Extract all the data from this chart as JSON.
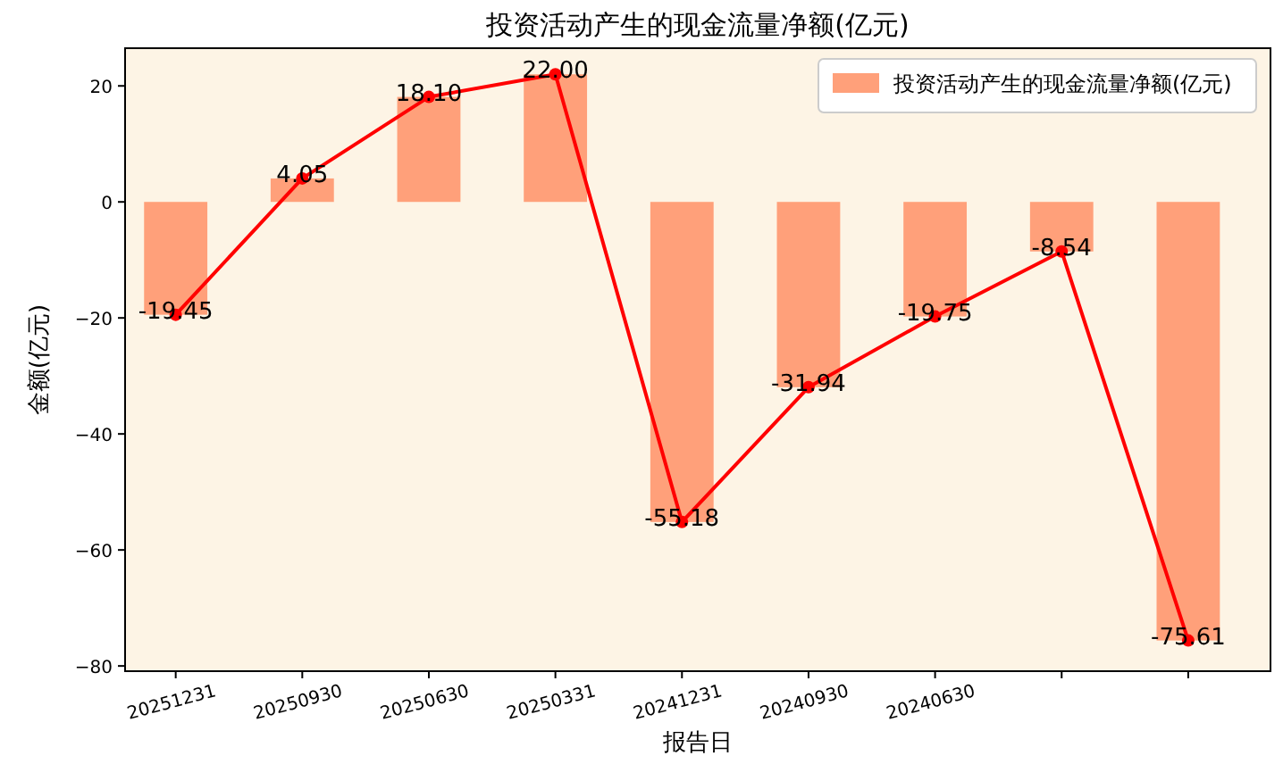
{
  "chart_data": {
    "type": "bar",
    "title": "投资活动产生的现金流量净额(亿元)",
    "xlabel": "报告日",
    "ylabel": "金额(亿元)",
    "categories": [
      "20251231",
      "20250930",
      "20250630",
      "20250331",
      "20241231",
      "20240930",
      "20240630",
      null,
      null
    ],
    "series": [
      {
        "name": "投资活动产生的现金流量净额(亿元)",
        "color": "#ffa07a",
        "values": [
          -19.45,
          4.05,
          18.1,
          22.0,
          -55.18,
          -31.94,
          -19.75,
          -8.54,
          -75.61
        ]
      },
      {
        "type": "line",
        "color": "#ff0000",
        "marker": "circle",
        "values": [
          -19.45,
          4.05,
          18.1,
          22.0,
          -55.18,
          -31.94,
          -19.75,
          -8.54,
          -75.61
        ],
        "value_labels": [
          "-19.45",
          "4.05",
          "18.10",
          "22.00",
          "-55.18",
          "-31.94",
          "-19.75",
          "-8.54",
          "-75.61"
        ]
      }
    ],
    "ylim": [
      -80.9,
      26.5
    ],
    "yticks": [
      -80,
      -60,
      -40,
      -20,
      0,
      20
    ],
    "legend": "top right",
    "grid": false
  }
}
